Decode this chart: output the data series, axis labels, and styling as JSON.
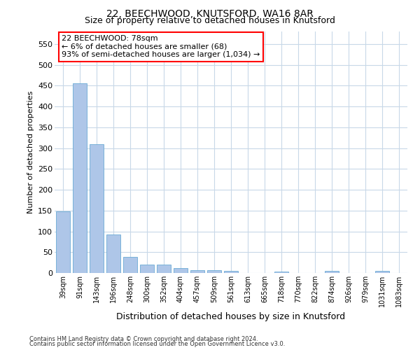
{
  "title1": "22, BEECHWOOD, KNUTSFORD, WA16 8AR",
  "title2": "Size of property relative to detached houses in Knutsford",
  "xlabel": "Distribution of detached houses by size in Knutsford",
  "ylabel": "Number of detached properties",
  "footnote1": "Contains HM Land Registry data © Crown copyright and database right 2024.",
  "footnote2": "Contains public sector information licensed under the Open Government Licence v3.0.",
  "bin_labels": [
    "39sqm",
    "91sqm",
    "143sqm",
    "196sqm",
    "248sqm",
    "300sqm",
    "352sqm",
    "404sqm",
    "457sqm",
    "509sqm",
    "561sqm",
    "613sqm",
    "665sqm",
    "718sqm",
    "770sqm",
    "822sqm",
    "874sqm",
    "926sqm",
    "979sqm",
    "1031sqm",
    "1083sqm"
  ],
  "bar_values": [
    148,
    455,
    310,
    92,
    38,
    20,
    20,
    11,
    7,
    6,
    5,
    0,
    0,
    4,
    0,
    0,
    5,
    0,
    0,
    5,
    0
  ],
  "bar_color": "#aec6e8",
  "bar_edge_color": "#6aaad4",
  "ylim": [
    0,
    580
  ],
  "yticks": [
    0,
    50,
    100,
    150,
    200,
    250,
    300,
    350,
    400,
    450,
    500,
    550
  ],
  "annotation_line1": "22 BEECHWOOD: 78sqm",
  "annotation_line2": "← 6% of detached houses are smaller (68)",
  "annotation_line3": "93% of semi-detached houses are larger (1,034) →",
  "box_color": "white",
  "box_edge_color": "red",
  "background_color": "#ffffff",
  "grid_color": "#c8d8e8",
  "title1_fontsize": 10,
  "title2_fontsize": 9,
  "xlabel_fontsize": 9,
  "ylabel_fontsize": 8,
  "annot_fontsize": 8,
  "tick_fontsize": 7,
  "footnote_fontsize": 6
}
